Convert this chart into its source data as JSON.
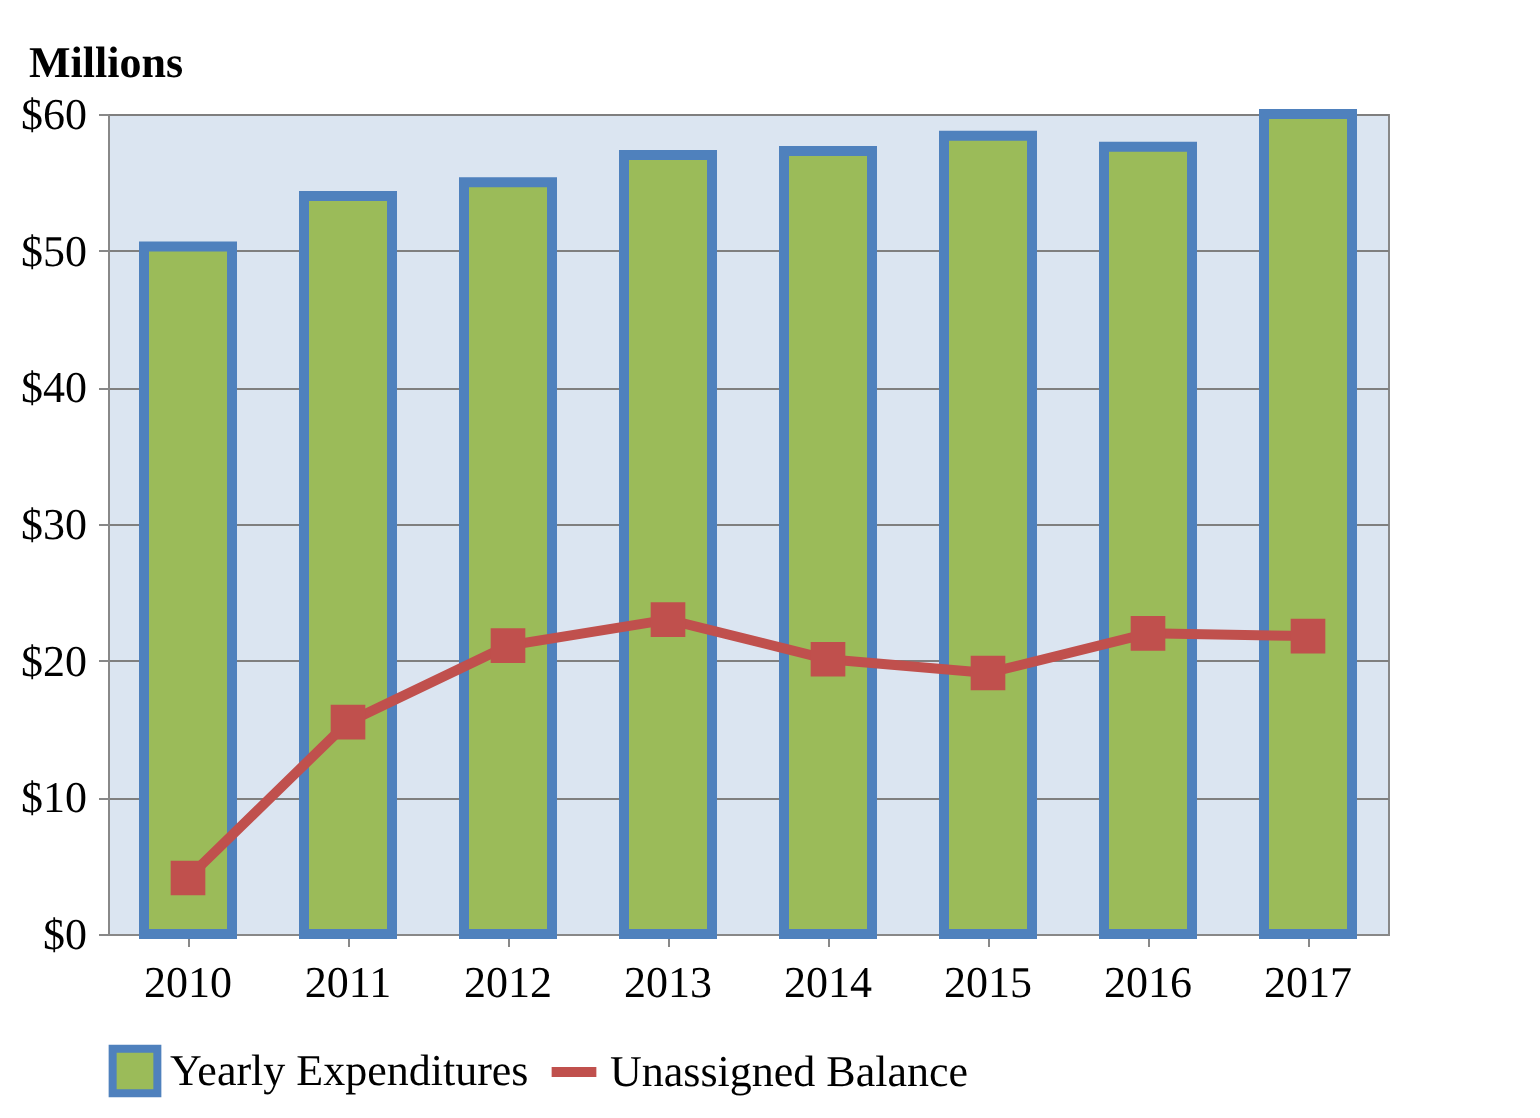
{
  "chart_data": {
    "type": "bar",
    "ylabel": "Millions",
    "categories": [
      "2010",
      "2011",
      "2012",
      "2013",
      "2014",
      "2015",
      "2016",
      "2017"
    ],
    "series": [
      {
        "name": "Yearly Expenditures",
        "color": "#9bbb59",
        "values": [
          50.3,
          54.0,
          55.0,
          57.0,
          57.3,
          58.4,
          57.6,
          60.0
        ]
      },
      {
        "name": "Unassigned Balance",
        "type": "line",
        "color": "#c0504d",
        "marker": "square",
        "values": [
          4.1,
          15.5,
          21.1,
          23.0,
          20.1,
          19.1,
          22.0,
          21.8
        ]
      }
    ],
    "ylim": [
      0,
      60
    ],
    "yticks": [
      {
        "value": 0,
        "label": "$0"
      },
      {
        "value": 10,
        "label": "$10"
      },
      {
        "value": 20,
        "label": "$20"
      },
      {
        "value": 30,
        "label": "$30"
      },
      {
        "value": 40,
        "label": "$40"
      },
      {
        "value": 50,
        "label": "$50"
      },
      {
        "value": 60,
        "label": "$60"
      }
    ],
    "grid": "y",
    "legend": "bottom"
  }
}
